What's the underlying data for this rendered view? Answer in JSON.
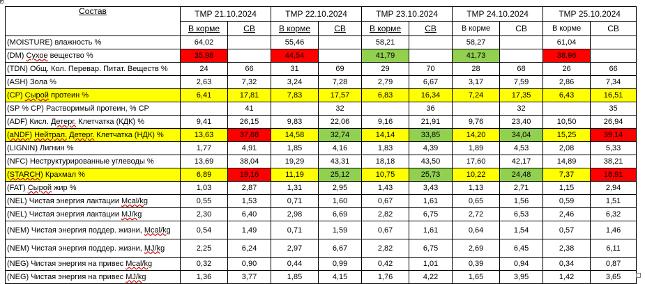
{
  "header": {
    "composition": "Состав",
    "dates": [
      "ТМР 21.10.2024",
      "ТМР 22.10.2024",
      "ТМР 23.10.2024",
      "ТМР 24.10.2024",
      "ТМР 25.10.2024"
    ],
    "sub_in_feed": "В корме",
    "sub_dm": "СВ"
  },
  "colors": {
    "yellow": "#ffff00",
    "red": "#ff0000",
    "green": "#92d050"
  },
  "rows": [
    {
      "name": "(MOISTURE) влажность %",
      "values": [
        "64,02",
        "",
        "55,46",
        "",
        "58,21",
        "",
        "58,27",
        "",
        "61,04",
        ""
      ]
    },
    {
      "name": "(DM) Сухое вещество %",
      "values": [
        "35,98",
        "",
        "44,54",
        "",
        "41,79",
        "",
        "41,73",
        "",
        "38,96",
        ""
      ]
    },
    {
      "name": "(TDN) Общ. Кол. Перевар. Питат. Веществ %",
      "values": [
        "24",
        "66",
        "31",
        "69",
        "29",
        "70",
        "28",
        "68",
        "26",
        "66"
      ]
    },
    {
      "name": "(ASH) Зола %",
      "values": [
        "2,63",
        "7,32",
        "3,24",
        "7,28",
        "2,79",
        "6,67",
        "3,17",
        "7,59",
        "2,86",
        "7,34"
      ]
    },
    {
      "name": "(CP) Сырой протеин %",
      "values": [
        "6,41",
        "17,81",
        "7,83",
        "17,57",
        "6,83",
        "16,34",
        "7,24",
        "17,35",
        "6,43",
        "16,51"
      ]
    },
    {
      "name": "(SP % CP) Растворимый протеин, % CP",
      "values": [
        "",
        "41",
        "",
        "32",
        "",
        "36",
        "",
        "32",
        "",
        "35"
      ]
    },
    {
      "name": "(ADF) Кисл. Детерг. Клетчатка (КДК) %",
      "values": [
        "9,41",
        "26,15",
        "9,83",
        "22,06",
        "9,16",
        "21,91",
        "9,76",
        "23,40",
        "10,50",
        "26,94"
      ]
    },
    {
      "name": "(aNDF) Нейтрал. Детерг. Клетчатка (НДК) %",
      "values": [
        "13,63",
        "37,88",
        "14,58",
        "32,74",
        "14,14",
        "33,85",
        "14,20",
        "34,04",
        "15,25",
        "39,14"
      ]
    },
    {
      "name": "(LIGNIN) Лигнин %",
      "values": [
        "1,77",
        "4,91",
        "1,85",
        "4,16",
        "1,83",
        "4,39",
        "1,89",
        "4,53",
        "2,08",
        "5,33"
      ]
    },
    {
      "name": "(NFC) Неструктурированные углеводы %",
      "values": [
        "13,69",
        "38,04",
        "19,29",
        "43,31",
        "18,18",
        "43,50",
        "17,60",
        "42,17",
        "14,89",
        "38,21"
      ]
    },
    {
      "name": "(STARCH) Крахмал %",
      "values": [
        "6,89",
        "19,16",
        "11,19",
        "25,12",
        "10,75",
        "25,73",
        "10,22",
        "24,48",
        "7,37",
        "18,91"
      ]
    },
    {
      "name": "(FAT) Сырой жир %",
      "values": [
        "1,03",
        "2,87",
        "1,31",
        "2,95",
        "1,43",
        "3,43",
        "1,13",
        "2,71",
        "1,15",
        "2,94"
      ]
    },
    {
      "name": "(NEL) Чистая энергия лактации Mcal/kg",
      "values": [
        "0,55",
        "1,53",
        "0,71",
        "1,60",
        "0,67",
        "1,61",
        "0,65",
        "1,56",
        "0,59",
        "1,51"
      ]
    },
    {
      "name": "(NEL) Чистая энергия лактации MJ/kg",
      "values": [
        "2,30",
        "6,40",
        "2,98",
        "6,69",
        "2,82",
        "6,75",
        "2,72",
        "6,53",
        "2,46",
        "6,32"
      ]
    },
    {
      "name": "(NEM) Чистая энергия поддер. жизни, Mcal/kg",
      "values": [
        "0,54",
        "1,49",
        "0,71",
        "1,59",
        "0,67",
        "1,61",
        "0,64",
        "1,54",
        "0,57",
        "1,46"
      ]
    },
    {
      "name": "(NEM) Чистая энергия поддер. жизни, MJ/kg",
      "values": [
        "2,25",
        "6,24",
        "2,97",
        "6,67",
        "2,82",
        "6,75",
        "2,69",
        "6,45",
        "2,38",
        "6,11"
      ]
    },
    {
      "name": "(NEG) Чистая энергия на привес Mcal/kg",
      "values": [
        "0,32",
        "0,90",
        "0,44",
        "0,99",
        "0,42",
        "1,01",
        "0,39",
        "0,94",
        "0,34",
        "0,87"
      ]
    },
    {
      "name": "(NEG) Чистая энергия на привес MJ/kg",
      "values": [
        "1,36",
        "3,77",
        "1,85",
        "4,15",
        "1,76",
        "4,22",
        "1,65",
        "3,95",
        "1,42",
        "3,65"
      ]
    }
  ]
}
